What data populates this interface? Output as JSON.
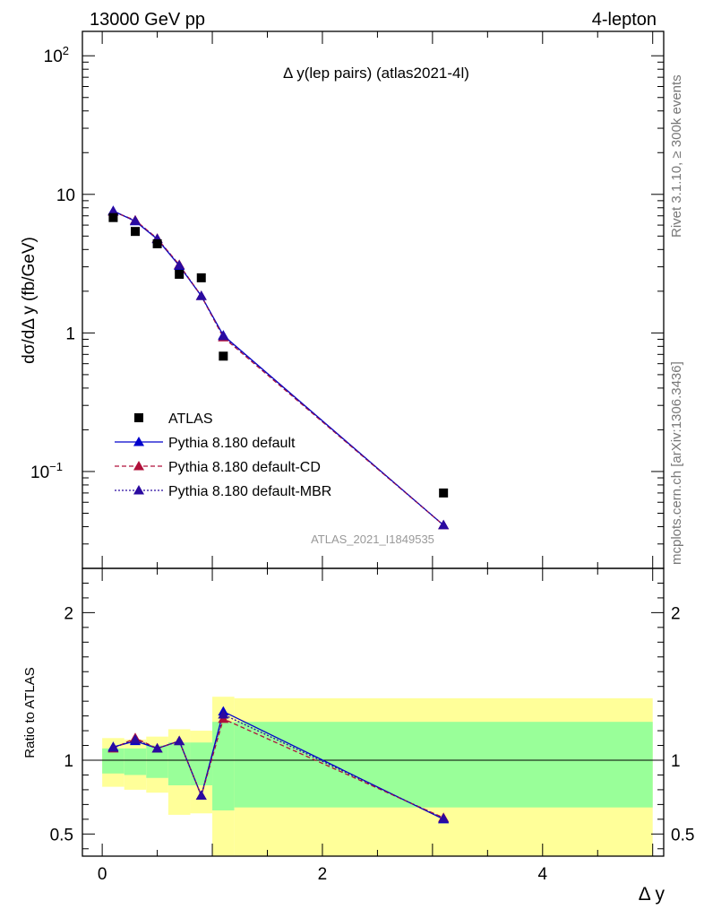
{
  "header": {
    "left": "13000 GeV pp",
    "right": "4-lepton"
  },
  "side_labels": {
    "rivet": "Rivet 3.1.10, ≥ 300k events",
    "mcplots": "mcplots.cern.ch [arXiv:1306.3436]"
  },
  "colors": {
    "data": "#000000",
    "default": "#0000cc",
    "cd": "#b0103a",
    "mbr": "#2a0aa0",
    "band_outer": "#ffff99",
    "band_inner": "#99ff99"
  },
  "chart_data": [
    {
      "type": "scatter",
      "title": "Δ y(lep pairs) (atlas2021-4l)",
      "ylabel": "dσ/dΔ y (fb/GeV)",
      "xlabel": "",
      "yscale": "log",
      "ylim": [
        0.02,
        150
      ],
      "xlim": [
        -0.18,
        5.1
      ],
      "y_ticks": [
        "10^-1",
        "1",
        "10",
        "10^2"
      ],
      "watermark": "ATLAS_2021_I1849535",
      "legend_position": "bottom-left",
      "legend": [
        "ATLAS",
        "Pythia 8.180 default",
        "Pythia 8.180 default-CD",
        "Pythia 8.180 default-MBR"
      ],
      "series": [
        {
          "name": "ATLAS",
          "x": [
            0.1,
            0.3,
            0.5,
            0.7,
            0.9,
            1.1,
            3.1
          ],
          "y": [
            6.8,
            5.4,
            4.4,
            2.65,
            2.5,
            0.68,
            0.07
          ]
        },
        {
          "name": "Pythia 8.180 default",
          "x": [
            0.1,
            0.3,
            0.5,
            0.7,
            0.9,
            1.1,
            3.1
          ],
          "y": [
            7.6,
            6.4,
            4.75,
            3.05,
            1.85,
            0.96,
            0.041
          ]
        },
        {
          "name": "Pythia 8.180 default-CD",
          "x": [
            0.1,
            0.3,
            0.5,
            0.7,
            0.9,
            1.1,
            3.1
          ],
          "y": [
            7.5,
            6.5,
            4.8,
            3.1,
            1.85,
            0.93,
            0.041
          ]
        },
        {
          "name": "Pythia 8.180 default-MBR",
          "x": [
            0.1,
            0.3,
            0.5,
            0.7,
            0.9,
            1.1,
            3.1
          ],
          "y": [
            7.55,
            6.45,
            4.78,
            3.08,
            1.85,
            0.95,
            0.041
          ]
        }
      ]
    },
    {
      "type": "line",
      "ylabel": "Ratio to ATLAS",
      "xlabel": "Δ y",
      "ylim": [
        0.35,
        2.3
      ],
      "xlim": [
        -0.18,
        5.1
      ],
      "x_ticks": [
        0,
        2,
        4
      ],
      "y_ticks": [
        0.5,
        1,
        2
      ],
      "bins": [
        [
          0,
          0.2
        ],
        [
          0.2,
          0.4
        ],
        [
          0.4,
          0.6
        ],
        [
          0.6,
          0.8
        ],
        [
          0.8,
          1.0
        ],
        [
          1.0,
          1.2
        ],
        [
          1.2,
          5.0
        ]
      ],
      "band_outer": [
        [
          0.82,
          1.15
        ],
        [
          0.8,
          1.14
        ],
        [
          0.78,
          1.16
        ],
        [
          0.63,
          1.21
        ],
        [
          0.64,
          1.2
        ],
        [
          0.0,
          1.43
        ],
        [
          0.0,
          1.42
        ]
      ],
      "band_inner": [
        [
          0.91,
          1.08
        ],
        [
          0.9,
          1.08
        ],
        [
          0.88,
          1.1
        ],
        [
          0.83,
          1.12
        ],
        [
          0.83,
          1.12
        ],
        [
          0.66,
          1.26
        ],
        [
          0.68,
          1.26
        ]
      ],
      "series": [
        {
          "name": "Pythia 8.180 default",
          "x": [
            0.1,
            0.3,
            0.5,
            0.7,
            0.9,
            1.1,
            3.1
          ],
          "y": [
            1.09,
            1.13,
            1.08,
            1.13,
            0.76,
            1.33,
            0.6
          ]
        },
        {
          "name": "Pythia 8.180 default-CD",
          "x": [
            0.1,
            0.3,
            0.5,
            0.7,
            0.9,
            1.1,
            3.1
          ],
          "y": [
            1.08,
            1.15,
            1.08,
            1.13,
            0.76,
            1.28,
            0.61
          ]
        },
        {
          "name": "Pythia 8.180 default-MBR",
          "x": [
            0.1,
            0.3,
            0.5,
            0.7,
            0.9,
            1.1,
            3.1
          ],
          "y": [
            1.085,
            1.14,
            1.08,
            1.13,
            0.76,
            1.31,
            0.605
          ]
        }
      ]
    }
  ]
}
